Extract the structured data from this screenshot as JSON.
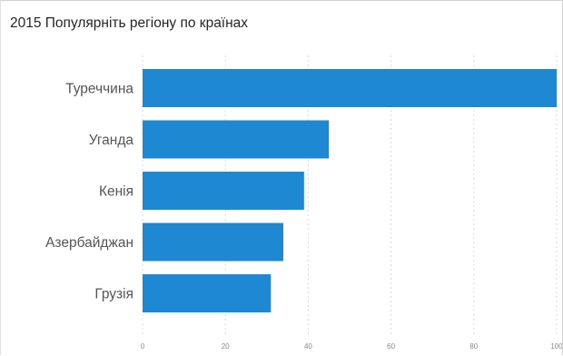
{
  "chart_data": {
    "type": "bar",
    "orientation": "horizontal",
    "title": "2015 Популярніть регіону по країнах",
    "categories": [
      "Туреччина",
      "Уганда",
      "Кенія",
      "Азербайджан",
      "Грузія"
    ],
    "values": [
      100,
      45,
      39,
      34,
      31
    ],
    "x_ticks": [
      "0",
      "20",
      "40",
      "60",
      "80",
      "100"
    ],
    "xlim": [
      0,
      100
    ],
    "grid": "vertical-dashed",
    "legend": "none",
    "bar_color": "#1f88d2",
    "grid_color": "#d9d9d9"
  }
}
